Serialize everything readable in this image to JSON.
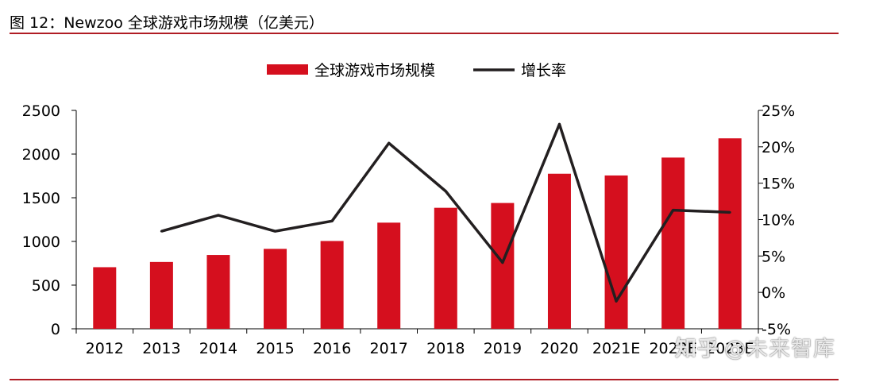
{
  "figure": {
    "title": "图 12：Newzoo 全球游戏市场规模（亿美元）"
  },
  "colors": {
    "bar": "#d50f1e",
    "line": "#231f20",
    "rule": "#b01c24"
  },
  "chart_data": {
    "type": "bar",
    "categories": [
      "2012",
      "2013",
      "2014",
      "2015",
      "2016",
      "2017",
      "2018",
      "2019",
      "2020",
      "2021E",
      "2022E",
      "2023E"
    ],
    "series": [
      {
        "name": "全球游戏市场规模",
        "type": "bar",
        "axis": "left",
        "values": [
          705,
          765,
          845,
          915,
          1005,
          1215,
          1385,
          1440,
          1775,
          1755,
          1960,
          2180
        ]
      },
      {
        "name": "增长率",
        "type": "line",
        "axis": "right",
        "values": [
          null,
          8.4,
          10.6,
          8.4,
          9.8,
          20.5,
          13.9,
          4.1,
          23.1,
          -1.2,
          11.3,
          11.0
        ]
      }
    ],
    "y_left": {
      "min": 0,
      "max": 2500,
      "ticks": [
        "0",
        "500",
        "1000",
        "1500",
        "2000",
        "2500"
      ]
    },
    "y_right": {
      "min": -5,
      "max": 25,
      "ticks": [
        "-5%",
        "0%",
        "5%",
        "10%",
        "15%",
        "20%",
        "25%"
      ]
    },
    "legend_position": "top-center",
    "grid": false
  },
  "watermark": {
    "logo": "知乎",
    "text": "@未来智库"
  }
}
